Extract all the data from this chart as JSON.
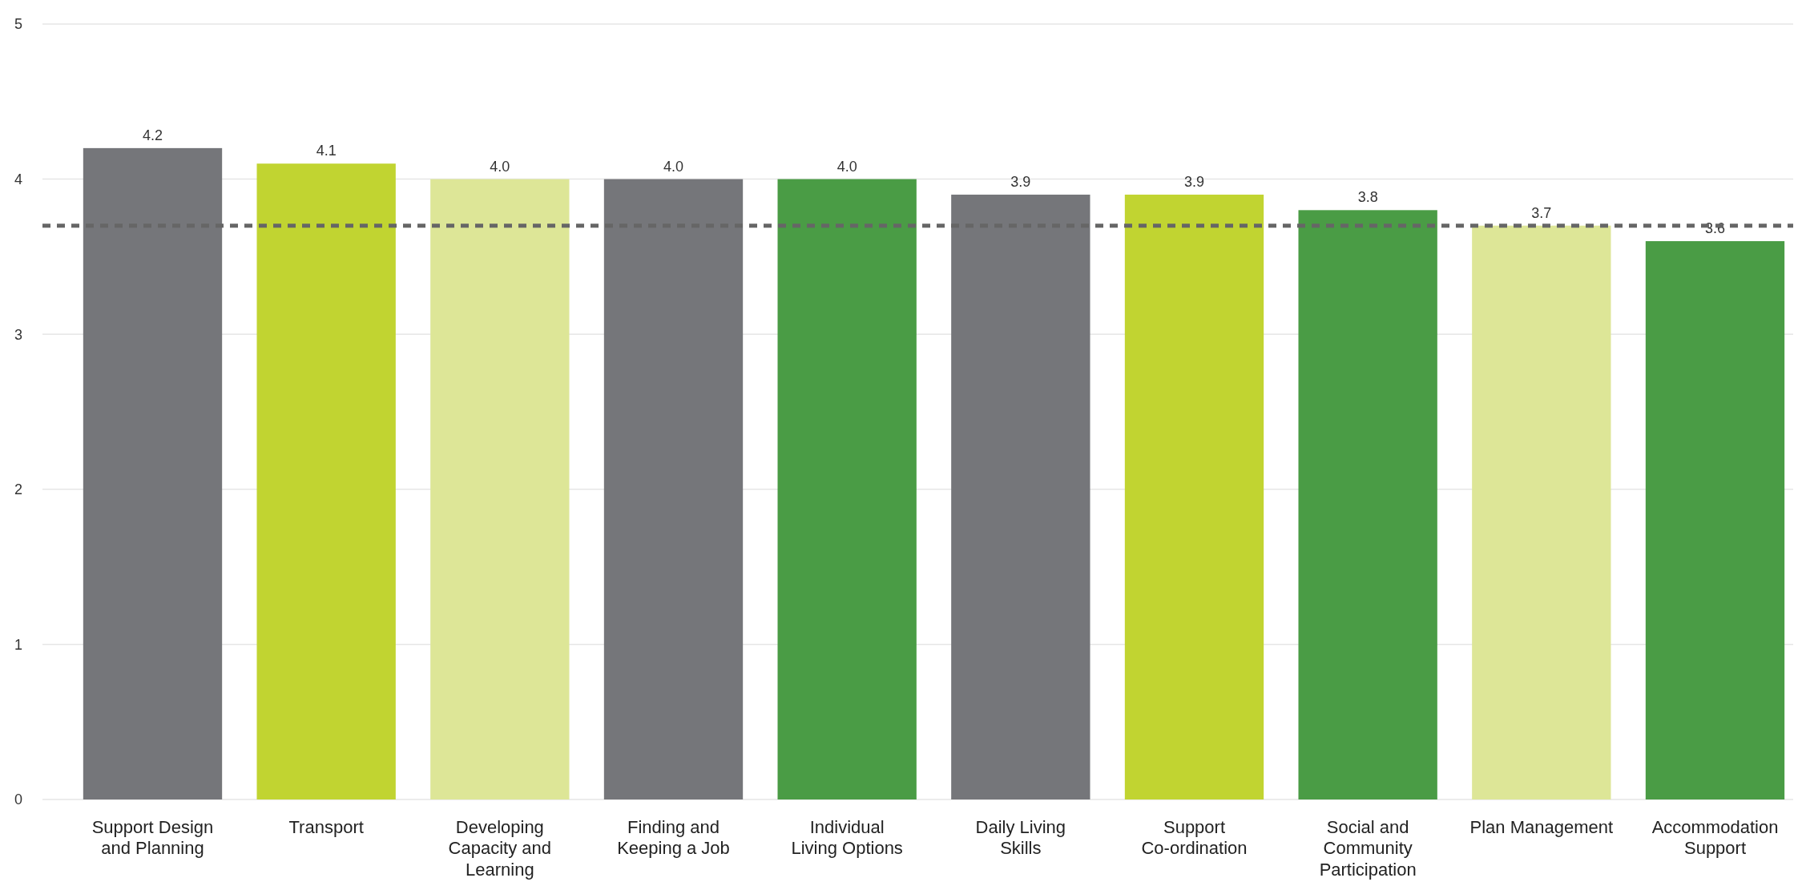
{
  "chart_data": {
    "type": "bar",
    "categories": [
      "Support Design and Planning",
      "Transport",
      "Developing Capacity and Learning",
      "Finding and Keeping a Job",
      "Individual Living Options",
      "Daily Living Skills",
      "Support Co-ordination",
      "Social and Community Participation",
      "Plan Management",
      "Accommodation Support"
    ],
    "values": [
      4.2,
      4.1,
      4.0,
      4.0,
      4.0,
      3.9,
      3.9,
      3.8,
      3.7,
      3.6
    ],
    "value_labels": [
      "4.2",
      "4.1",
      "4.0",
      "4.0",
      "4.0",
      "3.9",
      "3.9",
      "3.8",
      "3.7",
      "3.6"
    ],
    "colors": [
      "#75767a",
      "#c1d431",
      "#dde697",
      "#75767a",
      "#4a9c45",
      "#75767a",
      "#c1d431",
      "#4a9c45",
      "#dde697",
      "#4a9c45"
    ],
    "ylim": [
      0,
      5
    ],
    "yticks": [
      0,
      1,
      2,
      3,
      4,
      5
    ],
    "grid": "y",
    "ref_lines": [
      {
        "axis": "y",
        "value": 3.7,
        "color": "#666666",
        "line_style": "dashed"
      }
    ]
  }
}
